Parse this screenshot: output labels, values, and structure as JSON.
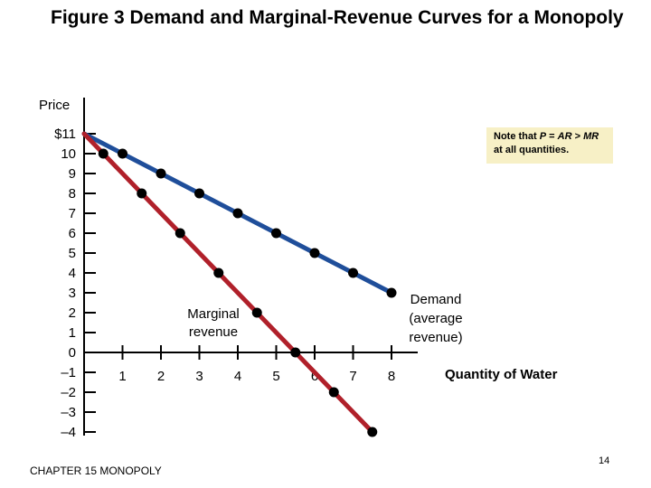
{
  "slide": {
    "title": "Figure 3 Demand and Marginal-Revenue Curves for a Monopoly",
    "footer": "CHAPTER 15 MONOPOLY",
    "page_number": "14"
  },
  "chart_data": {
    "type": "line",
    "title": "Figure 3 Demand and Marginal-Revenue Curves for a Monopoly",
    "xlabel": "Quantity of Water",
    "ylabel": "Price",
    "xlim": [
      0,
      8
    ],
    "ylim": [
      -4,
      11
    ],
    "x_ticks": [
      "1",
      "2",
      "3",
      "4",
      "5",
      "6",
      "7",
      "8"
    ],
    "y_ticks": [
      "$11",
      "10",
      "9",
      "8",
      "7",
      "6",
      "5",
      "4",
      "3",
      "2",
      "1",
      "0",
      "–1",
      "–2",
      "–3",
      "–4"
    ],
    "series": [
      {
        "name": "Demand (average revenue)",
        "label_lines": [
          "Demand",
          "(average",
          "revenue)"
        ],
        "color": "#1f4e9a",
        "x": [
          0,
          1,
          2,
          3,
          4,
          5,
          6,
          7,
          8
        ],
        "y": [
          11,
          10,
          9,
          8,
          7,
          6,
          5,
          4,
          3
        ]
      },
      {
        "name": "Marginal revenue",
        "label_lines": [
          "Marginal",
          "revenue"
        ],
        "color": "#b0202a",
        "x": [
          0,
          0.5,
          1.5,
          2.5,
          3.5,
          4.5,
          5.5,
          6.5,
          7.5
        ],
        "y": [
          11,
          10,
          8,
          6,
          4,
          2,
          0,
          -2,
          -4
        ]
      }
    ],
    "annotation": "Note that P = AR > MR at all quantities.",
    "grid": false,
    "legend": "none"
  }
}
